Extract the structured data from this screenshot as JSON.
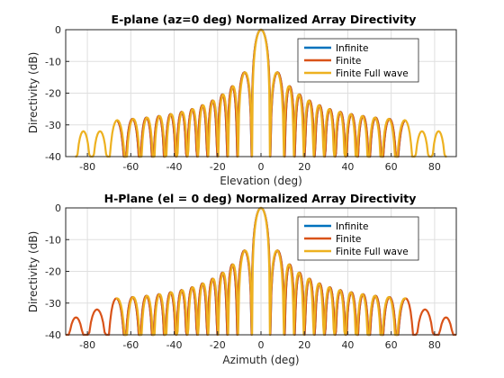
{
  "chart_data": [
    {
      "type": "line",
      "title": "E-plane (az=0 deg) Normalized Array Directivity",
      "xlabel": "Elevation (deg)",
      "ylabel": "Directivity (dB)",
      "xlim": [
        -90,
        90
      ],
      "ylim": [
        -40,
        0
      ],
      "xticks": [
        "-80",
        "-60",
        "-40",
        "-20",
        "0",
        "20",
        "40",
        "60",
        "80"
      ],
      "yticks": [
        "0",
        "-10",
        "-20",
        "-30",
        "-40"
      ],
      "grid": true,
      "legend_position": "top-right",
      "series": [
        {
          "name": "Infinite",
          "color": "#0072BD",
          "clip_deg": 67
        },
        {
          "name": "Finite",
          "color": "#D95319",
          "clip_deg": 67
        },
        {
          "name": "Finite Full wave",
          "color": "#EDB120",
          "clip_deg": 90
        }
      ],
      "peaks_x": [
        0,
        8.6,
        13.3,
        17.8,
        22.4,
        27.0,
        31.8,
        36.6,
        41.7,
        47.0,
        52.7,
        59.0,
        66.3,
        75.0,
        82.0
      ],
      "peaks_y": [
        0,
        -13.4,
        -17.8,
        -20.4,
        -22.3,
        -23.8,
        -25.0,
        -25.9,
        -26.6,
        -27.2,
        -27.7,
        -28.1,
        -28.5,
        -32.0,
        -32.0
      ]
    },
    {
      "type": "line",
      "title": "H-Plane (el = 0 deg) Normalized Array Directivity",
      "xlabel": "Azimuth (deg)",
      "ylabel": "Directivity (dB)",
      "xlim": [
        -90,
        90
      ],
      "ylim": [
        -40,
        0
      ],
      "xticks": [
        "-80",
        "-60",
        "-40",
        "-20",
        "0",
        "20",
        "40",
        "60",
        "80"
      ],
      "yticks": [
        "0",
        "-10",
        "-20",
        "-30",
        "-40"
      ],
      "grid": true,
      "legend_position": "top-right",
      "series": [
        {
          "name": "Infinite",
          "color": "#0072BD",
          "clip_deg": 67
        },
        {
          "name": "Finite",
          "color": "#D95319",
          "clip_deg": 90
        },
        {
          "name": "Finite Full wave",
          "color": "#EDB120",
          "clip_deg": 67
        }
      ],
      "peaks_x": [
        0,
        8.6,
        13.3,
        17.8,
        22.4,
        27.0,
        31.8,
        36.6,
        41.7,
        47.0,
        52.7,
        59.0,
        66.3,
        75.0,
        86.0
      ],
      "peaks_y": [
        0,
        -13.4,
        -17.8,
        -20.4,
        -22.3,
        -23.8,
        -25.0,
        -25.9,
        -26.6,
        -27.2,
        -27.7,
        -28.1,
        -28.5,
        -32.0,
        -34.5
      ]
    }
  ]
}
